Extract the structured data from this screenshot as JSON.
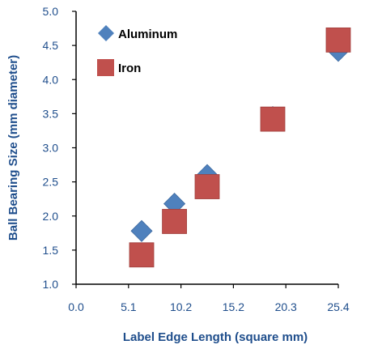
{
  "chart_data": {
    "type": "scatter",
    "xlabel": "Label Edge Length (square mm)",
    "ylabel": "Ball Bearing Size (mm diameter)",
    "xlim": [
      0.0,
      25.4
    ],
    "ylim": [
      1.0,
      5.0
    ],
    "x_ticks": [
      "0.0",
      "5.1",
      "10.2",
      "15.2",
      "20.3",
      "25.4"
    ],
    "y_ticks": [
      "1.0",
      "1.5",
      "2.0",
      "2.5",
      "3.0",
      "3.5",
      "4.0",
      "4.5",
      "5.0"
    ],
    "grid": false,
    "legend_position": "top-left",
    "series": [
      {
        "name": "Aluminum",
        "marker": "diamond",
        "color": "#4f81bd",
        "points": [
          {
            "x": 6.35,
            "y": 1.78
          },
          {
            "x": 9.53,
            "y": 2.18
          },
          {
            "x": 12.7,
            "y": 2.6
          },
          {
            "x": 19.05,
            "y": 3.45
          },
          {
            "x": 25.4,
            "y": 4.42
          }
        ]
      },
      {
        "name": "Iron",
        "marker": "square",
        "color": "#c0504d",
        "points": [
          {
            "x": 6.35,
            "y": 1.43
          },
          {
            "x": 9.53,
            "y": 1.92
          },
          {
            "x": 12.7,
            "y": 2.43
          },
          {
            "x": 19.05,
            "y": 3.42
          },
          {
            "x": 25.4,
            "y": 4.58
          }
        ]
      }
    ]
  }
}
